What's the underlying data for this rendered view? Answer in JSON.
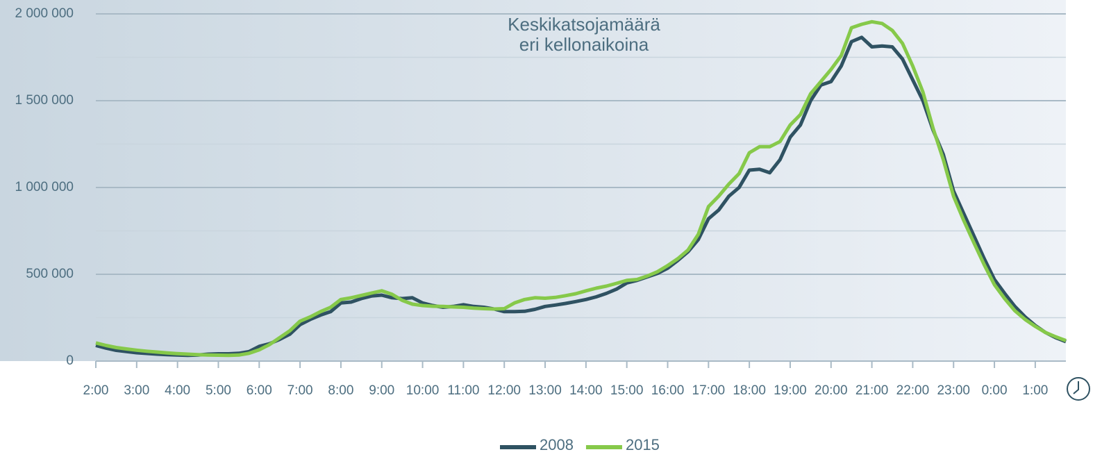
{
  "chart_data": {
    "type": "line",
    "title": [
      "Keskikatsojamäärä",
      "eri kellonaikoina"
    ],
    "categories": [
      "2:00",
      null,
      null,
      null,
      "3:00",
      null,
      null,
      null,
      "4:00",
      null,
      null,
      null,
      "5:00",
      null,
      null,
      null,
      "6:00",
      null,
      null,
      null,
      "7:00",
      null,
      null,
      null,
      "8:00",
      null,
      null,
      null,
      "9:00",
      null,
      null,
      null,
      "10:00",
      null,
      null,
      null,
      "11:00",
      null,
      null,
      null,
      "12:00",
      null,
      null,
      null,
      "13:00",
      null,
      null,
      null,
      "14:00",
      null,
      null,
      null,
      "15:00",
      null,
      null,
      null,
      "16:00",
      null,
      null,
      null,
      "17:00",
      null,
      null,
      null,
      "18:00",
      null,
      null,
      null,
      "19:00",
      null,
      null,
      null,
      "20:00",
      null,
      null,
      null,
      "21:00",
      null,
      null,
      null,
      "22:00",
      null,
      null,
      null,
      "23:00",
      null,
      null,
      null,
      "0:00",
      null,
      null,
      null,
      "1:00",
      null,
      null,
      null
    ],
    "series": [
      {
        "name": "2008",
        "color": "#2f5262",
        "values": [
          90000,
          75000,
          62000,
          55000,
          48000,
          44000,
          40000,
          37000,
          35000,
          33000,
          35000,
          40000,
          42000,
          42000,
          45000,
          55000,
          85000,
          100000,
          125000,
          155000,
          210000,
          240000,
          265000,
          285000,
          335000,
          340000,
          360000,
          375000,
          380000,
          365000,
          360000,
          365000,
          335000,
          320000,
          310000,
          315000,
          325000,
          315000,
          310000,
          300000,
          285000,
          285000,
          287000,
          298000,
          315000,
          323000,
          332000,
          343000,
          355000,
          370000,
          390000,
          415000,
          450000,
          465000,
          485000,
          505000,
          535000,
          580000,
          630000,
          700000,
          820000,
          870000,
          950000,
          1000000,
          1100000,
          1105000,
          1085000,
          1160000,
          1290000,
          1360000,
          1500000,
          1590000,
          1610000,
          1700000,
          1840000,
          1865000,
          1810000,
          1815000,
          1810000,
          1740000,
          1620000,
          1500000,
          1330000,
          1190000,
          980000,
          850000,
          720000,
          590000,
          470000,
          390000,
          315000,
          255000,
          205000,
          165000,
          135000,
          112000
        ]
      },
      {
        "name": "2015",
        "color": "#86c94a",
        "values": [
          105000,
          90000,
          78000,
          70000,
          63000,
          57000,
          52000,
          47000,
          43000,
          40000,
          37000,
          35000,
          34000,
          33000,
          35000,
          45000,
          65000,
          95000,
          135000,
          175000,
          230000,
          255000,
          285000,
          310000,
          355000,
          365000,
          378000,
          392000,
          405000,
          385000,
          350000,
          328000,
          320000,
          316000,
          315000,
          312000,
          310000,
          305000,
          302000,
          300000,
          302000,
          335000,
          355000,
          365000,
          362000,
          367000,
          377000,
          388000,
          405000,
          420000,
          432000,
          448000,
          465000,
          470000,
          490000,
          515000,
          550000,
          590000,
          640000,
          730000,
          890000,
          950000,
          1020000,
          1080000,
          1200000,
          1235000,
          1235000,
          1265000,
          1360000,
          1420000,
          1540000,
          1610000,
          1680000,
          1760000,
          1920000,
          1940000,
          1955000,
          1945000,
          1905000,
          1830000,
          1700000,
          1550000,
          1340000,
          1160000,
          950000,
          810000,
          680000,
          555000,
          440000,
          360000,
          290000,
          240000,
          200000,
          165000,
          140000,
          118000
        ]
      }
    ],
    "ylim": [
      0,
      2000000
    ],
    "yticks": [
      0,
      {
        "value": 500000,
        "label": "500 000"
      },
      {
        "value": 1000000,
        "label": "1 000 000"
      },
      {
        "value": 1500000,
        "label": "1 500 000"
      },
      {
        "value": 2000000,
        "label": "2 000 000"
      }
    ],
    "minor_yticks": [
      250000,
      750000,
      1250000,
      1750000
    ],
    "grid": true
  }
}
